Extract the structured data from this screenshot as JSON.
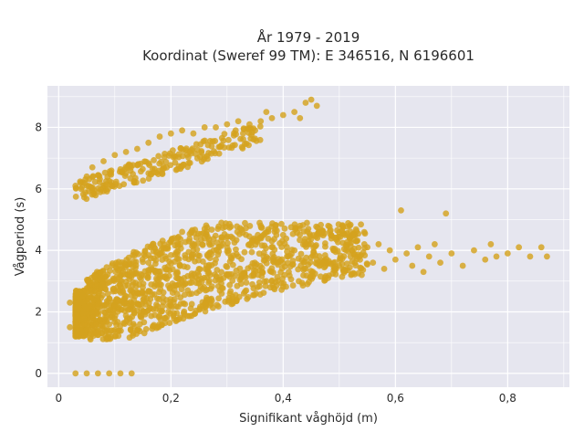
{
  "chart_data": {
    "type": "scatter",
    "title_lines": [
      "År 1979 - 2019",
      "Koordinat (Sweref 99 TM): E 346516, N 6196601"
    ],
    "xlabel": "Signifikant våghöjd (m)",
    "ylabel": "Vågperiod (s)",
    "xlim": [
      -0.02,
      0.91
    ],
    "ylim": [
      -0.45,
      9.35
    ],
    "x_ticks": [
      0,
      0.2,
      0.4,
      0.6,
      0.8
    ],
    "x_tick_labels": [
      "0",
      "0,2",
      "0,4",
      "0,6",
      "0,8"
    ],
    "y_ticks": [
      0,
      2,
      4,
      6,
      8
    ],
    "y_tick_labels": [
      "0",
      "2",
      "4",
      "6",
      "8"
    ],
    "grid": true,
    "marker_color": "#d4a21f",
    "background_color": "#e6e6ef",
    "series": [
      {
        "points": [
          [
            0.03,
            6.1
          ],
          [
            0.04,
            6.0
          ],
          [
            0.05,
            6.4
          ],
          [
            0.06,
            6.7
          ],
          [
            0.08,
            6.9
          ],
          [
            0.1,
            7.1
          ],
          [
            0.12,
            7.2
          ],
          [
            0.14,
            7.3
          ],
          [
            0.16,
            7.5
          ],
          [
            0.18,
            7.7
          ],
          [
            0.2,
            7.8
          ],
          [
            0.22,
            7.9
          ],
          [
            0.24,
            7.8
          ],
          [
            0.26,
            8.0
          ],
          [
            0.28,
            8.0
          ],
          [
            0.3,
            8.1
          ],
          [
            0.32,
            8.2
          ],
          [
            0.34,
            8.1
          ],
          [
            0.36,
            8.2
          ],
          [
            0.38,
            8.3
          ],
          [
            0.4,
            8.4
          ],
          [
            0.42,
            8.5
          ],
          [
            0.44,
            8.8
          ],
          [
            0.45,
            8.9
          ],
          [
            0.46,
            8.7
          ],
          [
            0.43,
            8.3
          ],
          [
            0.37,
            8.5
          ],
          [
            0.35,
            7.9
          ],
          [
            0.02,
            2.3
          ],
          [
            0.02,
            1.5
          ],
          [
            0.03,
            1.2
          ],
          [
            0.04,
            2.6
          ],
          [
            0.05,
            2.1
          ],
          [
            0.06,
            1.8
          ],
          [
            0.07,
            2.4
          ],
          [
            0.08,
            2.8
          ],
          [
            0.09,
            1.6
          ],
          [
            0.1,
            2.2
          ],
          [
            0.11,
            3.0
          ],
          [
            0.12,
            2.5
          ],
          [
            0.13,
            3.3
          ],
          [
            0.14,
            1.4
          ],
          [
            0.15,
            2.8
          ],
          [
            0.16,
            3.6
          ],
          [
            0.17,
            4.1
          ],
          [
            0.18,
            2.9
          ],
          [
            0.19,
            3.8
          ],
          [
            0.2,
            4.3
          ],
          [
            0.21,
            3.1
          ],
          [
            0.22,
            4.6
          ],
          [
            0.23,
            2.7
          ],
          [
            0.24,
            4.0
          ],
          [
            0.25,
            3.4
          ],
          [
            0.26,
            4.7
          ],
          [
            0.27,
            2.4
          ],
          [
            0.28,
            3.7
          ],
          [
            0.29,
            4.9
          ],
          [
            0.3,
            3.2
          ],
          [
            0.31,
            4.4
          ],
          [
            0.32,
            3.8
          ],
          [
            0.33,
            2.6
          ],
          [
            0.34,
            4.2
          ],
          [
            0.35,
            3.5
          ],
          [
            0.36,
            4.8
          ],
          [
            0.37,
            3.0
          ],
          [
            0.38,
            4.3
          ],
          [
            0.39,
            3.6
          ],
          [
            0.4,
            4.5
          ],
          [
            0.41,
            3.3
          ],
          [
            0.42,
            4.0
          ],
          [
            0.43,
            4.8
          ],
          [
            0.44,
            3.4
          ],
          [
            0.45,
            4.2
          ],
          [
            0.46,
            3.7
          ],
          [
            0.47,
            4.6
          ],
          [
            0.48,
            3.1
          ],
          [
            0.49,
            4.0
          ],
          [
            0.5,
            3.5
          ],
          [
            0.51,
            4.5
          ],
          [
            0.52,
            3.8
          ],
          [
            0.53,
            4.3
          ],
          [
            0.54,
            3.2
          ],
          [
            0.55,
            4.1
          ],
          [
            0.56,
            3.6
          ],
          [
            0.57,
            4.2
          ],
          [
            0.58,
            3.4
          ],
          [
            0.59,
            4.0
          ],
          [
            0.6,
            3.7
          ],
          [
            0.61,
            5.3
          ],
          [
            0.62,
            3.9
          ],
          [
            0.63,
            3.5
          ],
          [
            0.64,
            4.1
          ],
          [
            0.65,
            3.3
          ],
          [
            0.66,
            3.8
          ],
          [
            0.67,
            4.2
          ],
          [
            0.68,
            3.6
          ],
          [
            0.69,
            5.2
          ],
          [
            0.7,
            3.9
          ],
          [
            0.72,
            3.5
          ],
          [
            0.74,
            4.0
          ],
          [
            0.76,
            3.7
          ],
          [
            0.77,
            4.2
          ],
          [
            0.78,
            3.8
          ],
          [
            0.8,
            3.9
          ],
          [
            0.82,
            4.1
          ],
          [
            0.84,
            3.8
          ],
          [
            0.86,
            4.1
          ],
          [
            0.87,
            3.8
          ],
          [
            0.03,
            0.0
          ],
          [
            0.05,
            0.0
          ],
          [
            0.07,
            0.0
          ],
          [
            0.09,
            0.0
          ],
          [
            0.11,
            0.0
          ],
          [
            0.13,
            0.0
          ]
        ]
      }
    ]
  }
}
